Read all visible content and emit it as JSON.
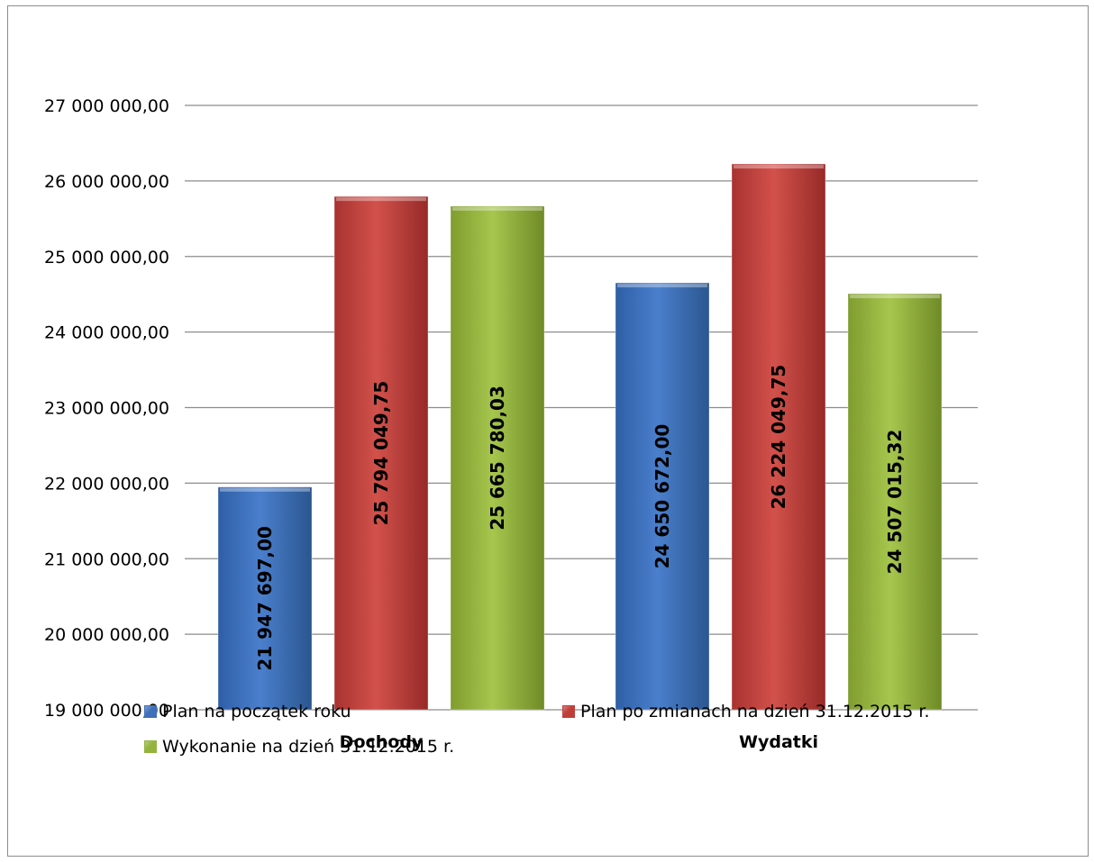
{
  "chart_data": {
    "type": "bar",
    "categories": [
      "Dochody",
      "Wydatki"
    ],
    "series": [
      {
        "name": "Plan na początek roku",
        "values": [
          21947697.0,
          24650672.0
        ],
        "labels": [
          "21 947 697,00",
          "24 650 672,00"
        ],
        "color": "#3f6fb8"
      },
      {
        "name": "Plan po zmianach na dzień 31.12.2015 r.",
        "values": [
          25794049.75,
          26224049.75
        ],
        "labels": [
          "25 794 049,75",
          "26 224 049,75"
        ],
        "color": "#c03e3a"
      },
      {
        "name": "Wykonanie na dzień 31.12.2015 r.",
        "values": [
          25665780.03,
          24507015.32
        ],
        "labels": [
          "25 665 780,03",
          "24 507 015,32"
        ],
        "color": "#93b33c"
      }
    ],
    "ylim": [
      19000000,
      27000000
    ],
    "yticks": [
      19000000,
      20000000,
      21000000,
      22000000,
      23000000,
      24000000,
      25000000,
      26000000,
      27000000
    ],
    "ytick_labels": [
      "19 000 000,00",
      "20 000 000,00",
      "21 000 000,00",
      "22 000 000,00",
      "23 000 000,00",
      "24 000 000,00",
      "25 000 000,00",
      "26 000 000,00",
      "27 000 000,00"
    ],
    "grid": true,
    "legend_position": "bottom"
  }
}
